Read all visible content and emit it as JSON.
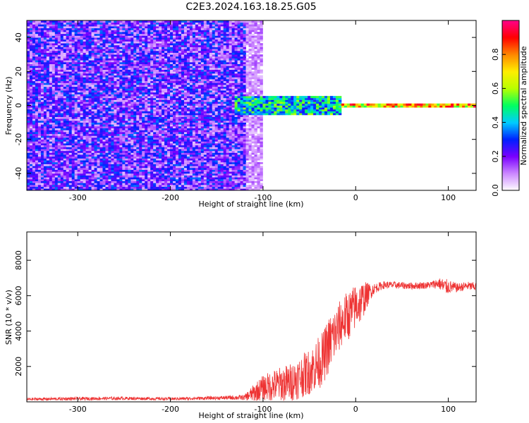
{
  "title": "C2E3.2024.163.18.25.G05",
  "chart_data": [
    {
      "type": "heatmap",
      "xlabel": "Height of straight line (km)",
      "ylabel": "Frequency (Hz)",
      "xlim": [
        -355,
        130
      ],
      "ylim": [
        -50,
        50
      ],
      "xticks": [
        -300,
        -200,
        -100,
        0,
        100
      ],
      "yticks": [
        -40,
        -20,
        0,
        20,
        40
      ],
      "colorbar": {
        "label": "Normalized spectral amplitude",
        "range": [
          0,
          1
        ],
        "ticks": [
          0.0,
          0.2,
          0.4,
          0.6,
          0.8
        ],
        "colors": [
          "#ffffff",
          "#cc88ff",
          "#7a00ff",
          "#0020ff",
          "#00ccff",
          "#00ff60",
          "#b8ff00",
          "#ffee00",
          "#ff8800",
          "#ff0000",
          "#ff0088"
        ]
      },
      "regions": [
        {
          "x_range": [
            -355,
            -120
          ],
          "freq_range": [
            -50,
            50
          ],
          "amplitude": [
            0.05,
            0.35
          ]
        },
        {
          "x_range": [
            -120,
            -100
          ],
          "freq_range": [
            -50,
            50
          ],
          "amplitude": [
            0.02,
            0.15
          ]
        },
        {
          "x_range": [
            -130,
            -15
          ],
          "freq_range": [
            -6,
            5
          ],
          "amplitude": [
            0.25,
            0.6
          ]
        },
        {
          "x_range": [
            -15,
            130
          ],
          "freq_range": [
            -1,
            1
          ],
          "amplitude": [
            0.5,
            0.95
          ]
        }
      ]
    },
    {
      "type": "line",
      "xlabel": "Height of straight line (km)",
      "ylabel": "SNR (10 * v/v)",
      "xlim": [
        -355,
        130
      ],
      "ylim": [
        0,
        9600
      ],
      "xticks": [
        -300,
        -200,
        -100,
        0,
        100
      ],
      "yticks": [
        2000,
        4000,
        6000,
        8000
      ],
      "color": "#ee3333",
      "x": [
        -355,
        -300,
        -250,
        -200,
        -150,
        -120,
        -110,
        -100,
        -90,
        -80,
        -70,
        -60,
        -50,
        -40,
        -35,
        -30,
        -25,
        -20,
        -15,
        -10,
        -5,
        0,
        5,
        10,
        15,
        20,
        25,
        30,
        40,
        60,
        80,
        90,
        95,
        100,
        110,
        120,
        130
      ],
      "y": [
        150,
        180,
        200,
        170,
        220,
        250,
        500,
        800,
        900,
        1000,
        1100,
        1400,
        1700,
        2200,
        2500,
        3100,
        3600,
        4000,
        4500,
        4800,
        5000,
        5400,
        5600,
        5900,
        6200,
        6400,
        6500,
        6600,
        6600,
        6550,
        6600,
        6700,
        6500,
        6500,
        6450,
        6550,
        6500
      ],
      "noise": [
        80,
        90,
        90,
        80,
        100,
        150,
        500,
        700,
        900,
        1000,
        1100,
        1200,
        1300,
        1500,
        1500,
        1600,
        1600,
        1500,
        1400,
        1400,
        1400,
        1300,
        1200,
        900,
        500,
        300,
        250,
        220,
        200,
        200,
        200,
        300,
        500,
        400,
        250,
        250,
        250
      ]
    }
  ]
}
